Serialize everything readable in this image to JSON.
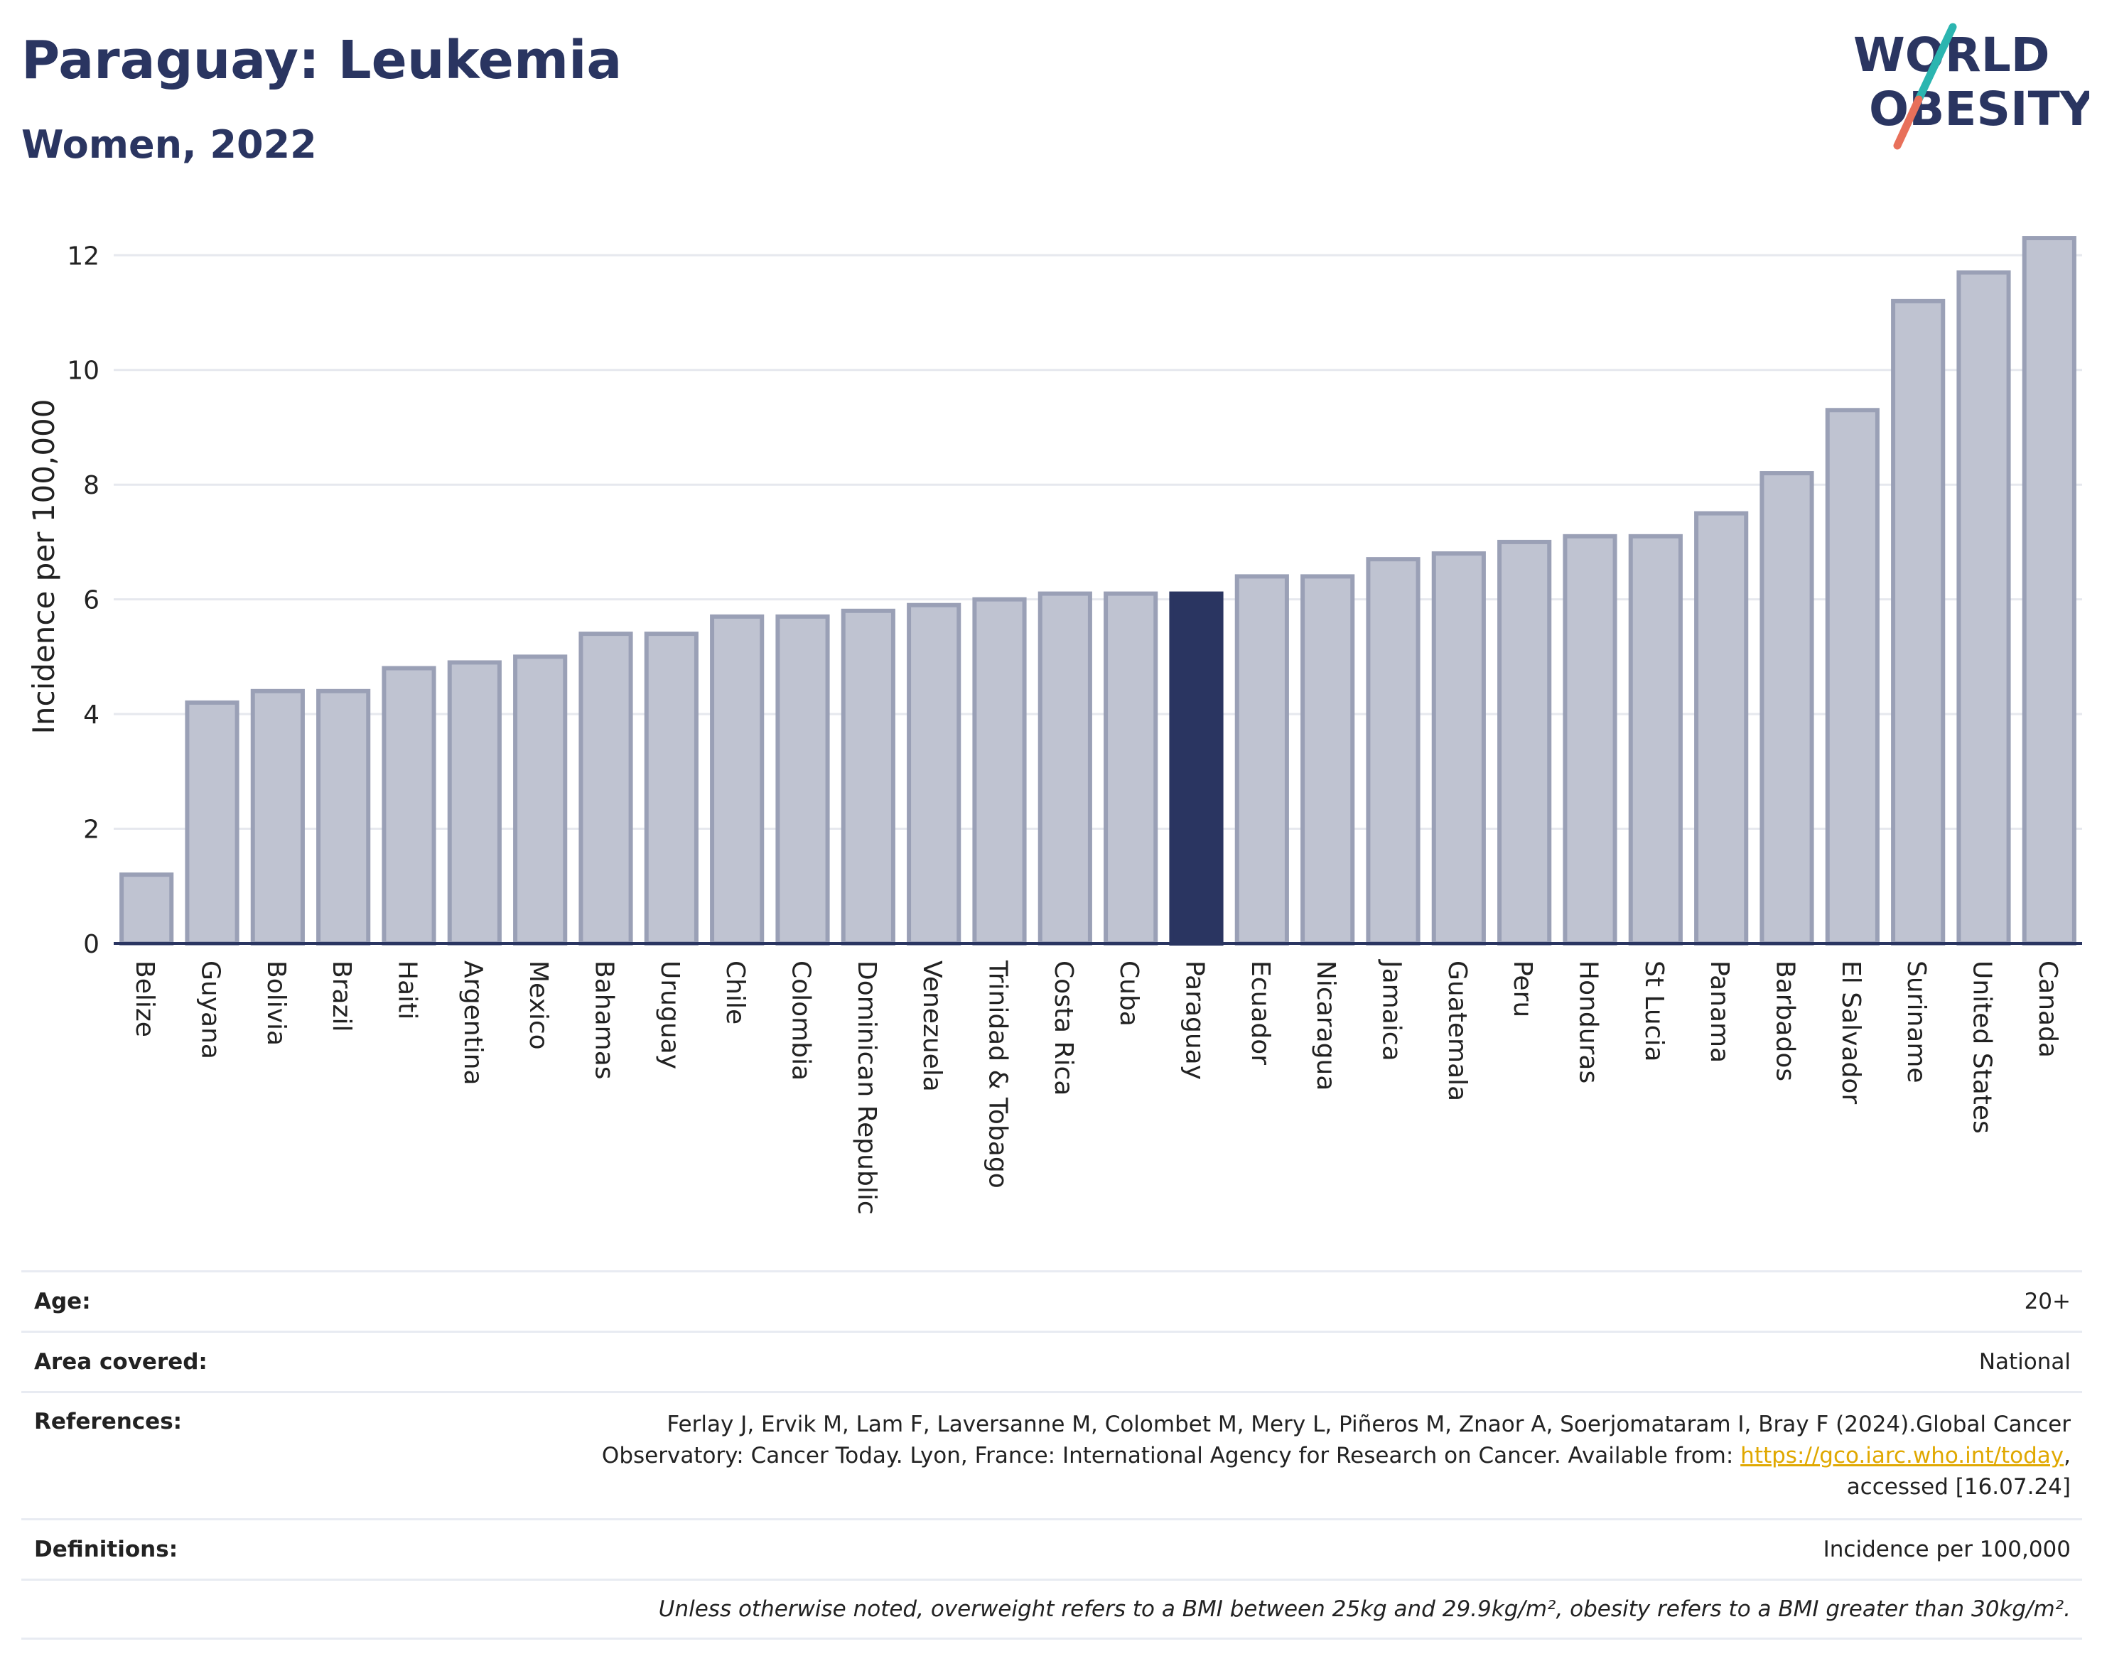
{
  "header": {
    "title": "Paraguay: Leukemia",
    "subtitle": "Women, 2022"
  },
  "logo": {
    "line1": "WORLD",
    "line2": "OBESITY",
    "colors": {
      "text": "#2a3561",
      "teal": "#2bb5b0",
      "coral": "#e8705a"
    }
  },
  "colors": {
    "highlight": "#2a3561",
    "bar_fill": "#bfc3d1",
    "bar_stroke": "#9aa0b6",
    "grid": "#e6e8ee",
    "axis": "#2a3561"
  },
  "chart_data": {
    "type": "bar",
    "ylabel": "Incidence per 100,000",
    "ylim": [
      0,
      12.4
    ],
    "yticks": [
      0,
      2,
      4,
      6,
      8,
      10,
      12
    ],
    "grid": true,
    "highlight": "Paraguay",
    "categories": [
      "Belize",
      "Guyana",
      "Bolivia",
      "Brazil",
      "Haiti",
      "Argentina",
      "Mexico",
      "Bahamas",
      "Uruguay",
      "Chile",
      "Colombia",
      "Dominican Republic",
      "Venezuela",
      "Trinidad & Tobago",
      "Costa Rica",
      "Cuba",
      "Paraguay",
      "Ecuador",
      "Nicaragua",
      "Jamaica",
      "Guatemala",
      "Peru",
      "Honduras",
      "St Lucia",
      "Panama",
      "Barbados",
      "El Salvador",
      "Suriname",
      "United States",
      "Canada"
    ],
    "values": [
      1.2,
      4.2,
      4.4,
      4.4,
      4.8,
      4.9,
      5.0,
      5.4,
      5.4,
      5.7,
      5.7,
      5.8,
      5.9,
      6.0,
      6.1,
      6.1,
      6.1,
      6.4,
      6.4,
      6.7,
      6.8,
      7.0,
      7.1,
      7.1,
      7.5,
      8.2,
      9.3,
      11.2,
      11.7,
      12.3
    ]
  },
  "info": {
    "age_label": "Age:",
    "age_value": "20+",
    "area_label": "Area covered:",
    "area_value": "National",
    "references_label": "References:",
    "references_line1": "Ferlay J, Ervik M, Lam F, Laversanne M, Colombet M, Mery L, Piñeros M, Znaor A, Soerjomataram I, Bray F (2024).Global Cancer",
    "references_line2": "Observatory: Cancer Today. Lyon, France: International Agency for Research on Cancer. Available from:",
    "references_link": "https://gco.iarc.who.int/today",
    "references_line3": "accessed [16.07.24]",
    "definitions_label": "Definitions:",
    "definitions_value": "Incidence per 100,000",
    "note": "Unless otherwise noted, overweight refers to a BMI between 25kg and 29.9kg/m², obesity refers to a BMI greater than 30kg/m²."
  }
}
